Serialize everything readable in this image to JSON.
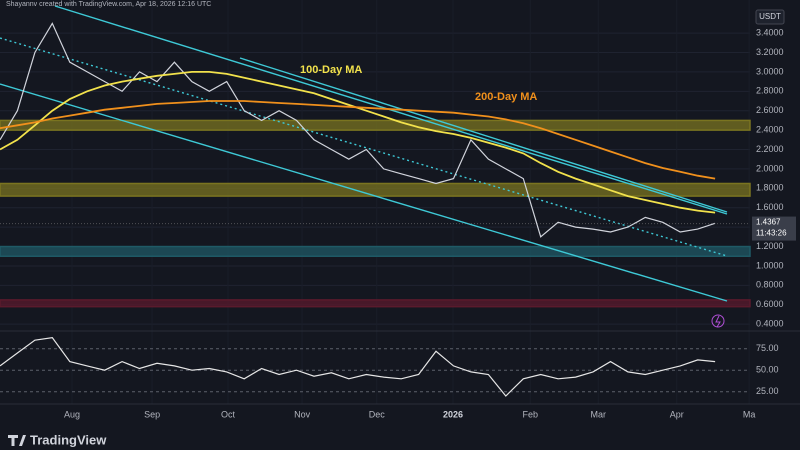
{
  "header": {
    "credit": "Shayannv created with TradingView.com, Apr 18, 2026 12:16 UTC"
  },
  "chart_data": [
    {
      "type": "line",
      "currency": "USDT",
      "x": [
        0,
        1,
        2,
        3,
        4,
        5,
        6,
        7,
        8,
        9,
        10,
        11,
        12,
        13,
        14,
        15,
        16,
        17,
        18,
        19,
        20,
        21,
        22,
        23,
        24,
        25,
        26,
        27,
        28,
        29,
        30,
        31,
        32,
        33,
        34,
        35,
        36,
        37,
        38,
        39,
        40,
        41
      ],
      "xlim": [
        0,
        43
      ],
      "xticks": [
        {
          "value": 4.13,
          "label": "Aug"
        },
        {
          "value": 8.72,
          "label": "Sep"
        },
        {
          "value": 13.07,
          "label": "Oct"
        },
        {
          "value": 17.32,
          "label": "Nov"
        },
        {
          "value": 21.6,
          "label": "Dec"
        },
        {
          "value": 25.97,
          "label": "2026"
        },
        {
          "value": 30.4,
          "label": "Feb"
        },
        {
          "value": 34.3,
          "label": "Mar"
        },
        {
          "value": 38.8,
          "label": "Apr"
        },
        {
          "value": 42.95,
          "label": "Ma"
        }
      ],
      "ylim": [
        0.35,
        3.7
      ],
      "yticks": [
        {
          "value": 0.4,
          "label": "0.4000"
        },
        {
          "value": 0.6,
          "label": "0.6000"
        },
        {
          "value": 0.8,
          "label": "0.8000"
        },
        {
          "value": 1.0,
          "label": "1.0000"
        },
        {
          "value": 1.2,
          "label": "1.2000"
        },
        {
          "value": 1.4,
          "label": "1.4000"
        },
        {
          "value": 1.6,
          "label": "1.6000"
        },
        {
          "value": 1.8,
          "label": "1.8000"
        },
        {
          "value": 2.0,
          "label": "2.0000"
        },
        {
          "value": 2.2,
          "label": "2.2000"
        },
        {
          "value": 2.4,
          "label": "2.4000"
        },
        {
          "value": 2.6,
          "label": "2.6000"
        },
        {
          "value": 2.8,
          "label": "2.8000"
        },
        {
          "value": 3.0,
          "label": "3.0000"
        },
        {
          "value": 3.2,
          "label": "3.2000"
        },
        {
          "value": 3.4,
          "label": "3.4000"
        }
      ],
      "series": [
        {
          "color": "#d1d4dc",
          "values": [
            2.3,
            2.6,
            3.2,
            3.5,
            3.1,
            3.0,
            2.9,
            2.8,
            3.0,
            2.9,
            3.1,
            2.9,
            2.8,
            2.9,
            2.6,
            2.5,
            2.6,
            2.5,
            2.3,
            2.2,
            2.1,
            2.2,
            2.0,
            1.95,
            1.9,
            1.85,
            1.9,
            2.3,
            2.1,
            2.0,
            1.9,
            1.3,
            1.45,
            1.4,
            1.38,
            1.35,
            1.4,
            1.5,
            1.45,
            1.35,
            1.38,
            1.44
          ]
        },
        {
          "name": "100-Day MA",
          "color": "#f2e24c",
          "values": [
            2.2,
            2.3,
            2.45,
            2.6,
            2.72,
            2.8,
            2.86,
            2.9,
            2.93,
            2.96,
            2.98,
            3.0,
            3.0,
            2.98,
            2.94,
            2.9,
            2.86,
            2.82,
            2.78,
            2.72,
            2.66,
            2.6,
            2.54,
            2.48,
            2.43,
            2.39,
            2.36,
            2.32,
            2.27,
            2.22,
            2.16,
            2.06,
            1.97,
            1.9,
            1.84,
            1.78,
            1.72,
            1.68,
            1.64,
            1.6,
            1.57,
            1.55
          ]
        },
        {
          "name": "200-Day MA",
          "color": "#f0901c",
          "values": [
            2.42,
            2.45,
            2.48,
            2.52,
            2.55,
            2.58,
            2.61,
            2.63,
            2.65,
            2.67,
            2.68,
            2.69,
            2.7,
            2.7,
            2.7,
            2.69,
            2.68,
            2.67,
            2.66,
            2.65,
            2.64,
            2.63,
            2.62,
            2.61,
            2.6,
            2.59,
            2.58,
            2.56,
            2.54,
            2.51,
            2.47,
            2.42,
            2.36,
            2.3,
            2.24,
            2.18,
            2.12,
            2.06,
            2.01,
            1.97,
            1.93,
            1.9
          ]
        }
      ],
      "zones": [
        {
          "from": 2.4,
          "to": 2.5,
          "color": "#7a7420"
        },
        {
          "from": 1.72,
          "to": 1.85,
          "color": "#7a7420"
        },
        {
          "from": 1.1,
          "to": 1.2,
          "color": "#1f5a66"
        },
        {
          "from": 0.58,
          "to": 0.65,
          "color": "#5a1a2c"
        }
      ],
      "last_price": 1.4367,
      "countdown": "11:43:26"
    },
    {
      "type": "line",
      "x": [
        0,
        1,
        2,
        3,
        4,
        5,
        6,
        7,
        8,
        9,
        10,
        11,
        12,
        13,
        14,
        15,
        16,
        17,
        18,
        19,
        20,
        21,
        22,
        23,
        24,
        25,
        26,
        27,
        28,
        29,
        30,
        31,
        32,
        33,
        34,
        35,
        36,
        37,
        38,
        39,
        40,
        41
      ],
      "xlim": [
        0,
        43
      ],
      "ylim": [
        13,
        91
      ],
      "yticks": [
        {
          "value": 25,
          "label": "25.00"
        },
        {
          "value": 50,
          "label": "50.00"
        },
        {
          "value": 75,
          "label": "75.00"
        }
      ],
      "color": "#e6e6e6",
      "values": [
        55,
        70,
        85,
        88,
        60,
        55,
        50,
        60,
        52,
        58,
        55,
        50,
        52,
        48,
        40,
        52,
        45,
        50,
        43,
        47,
        40,
        45,
        42,
        40,
        45,
        72,
        55,
        48,
        45,
        20,
        40,
        45,
        40,
        42,
        48,
        60,
        48,
        45,
        50,
        55,
        62,
        60
      ]
    }
  ],
  "footer": {
    "logo": "TradingView"
  }
}
